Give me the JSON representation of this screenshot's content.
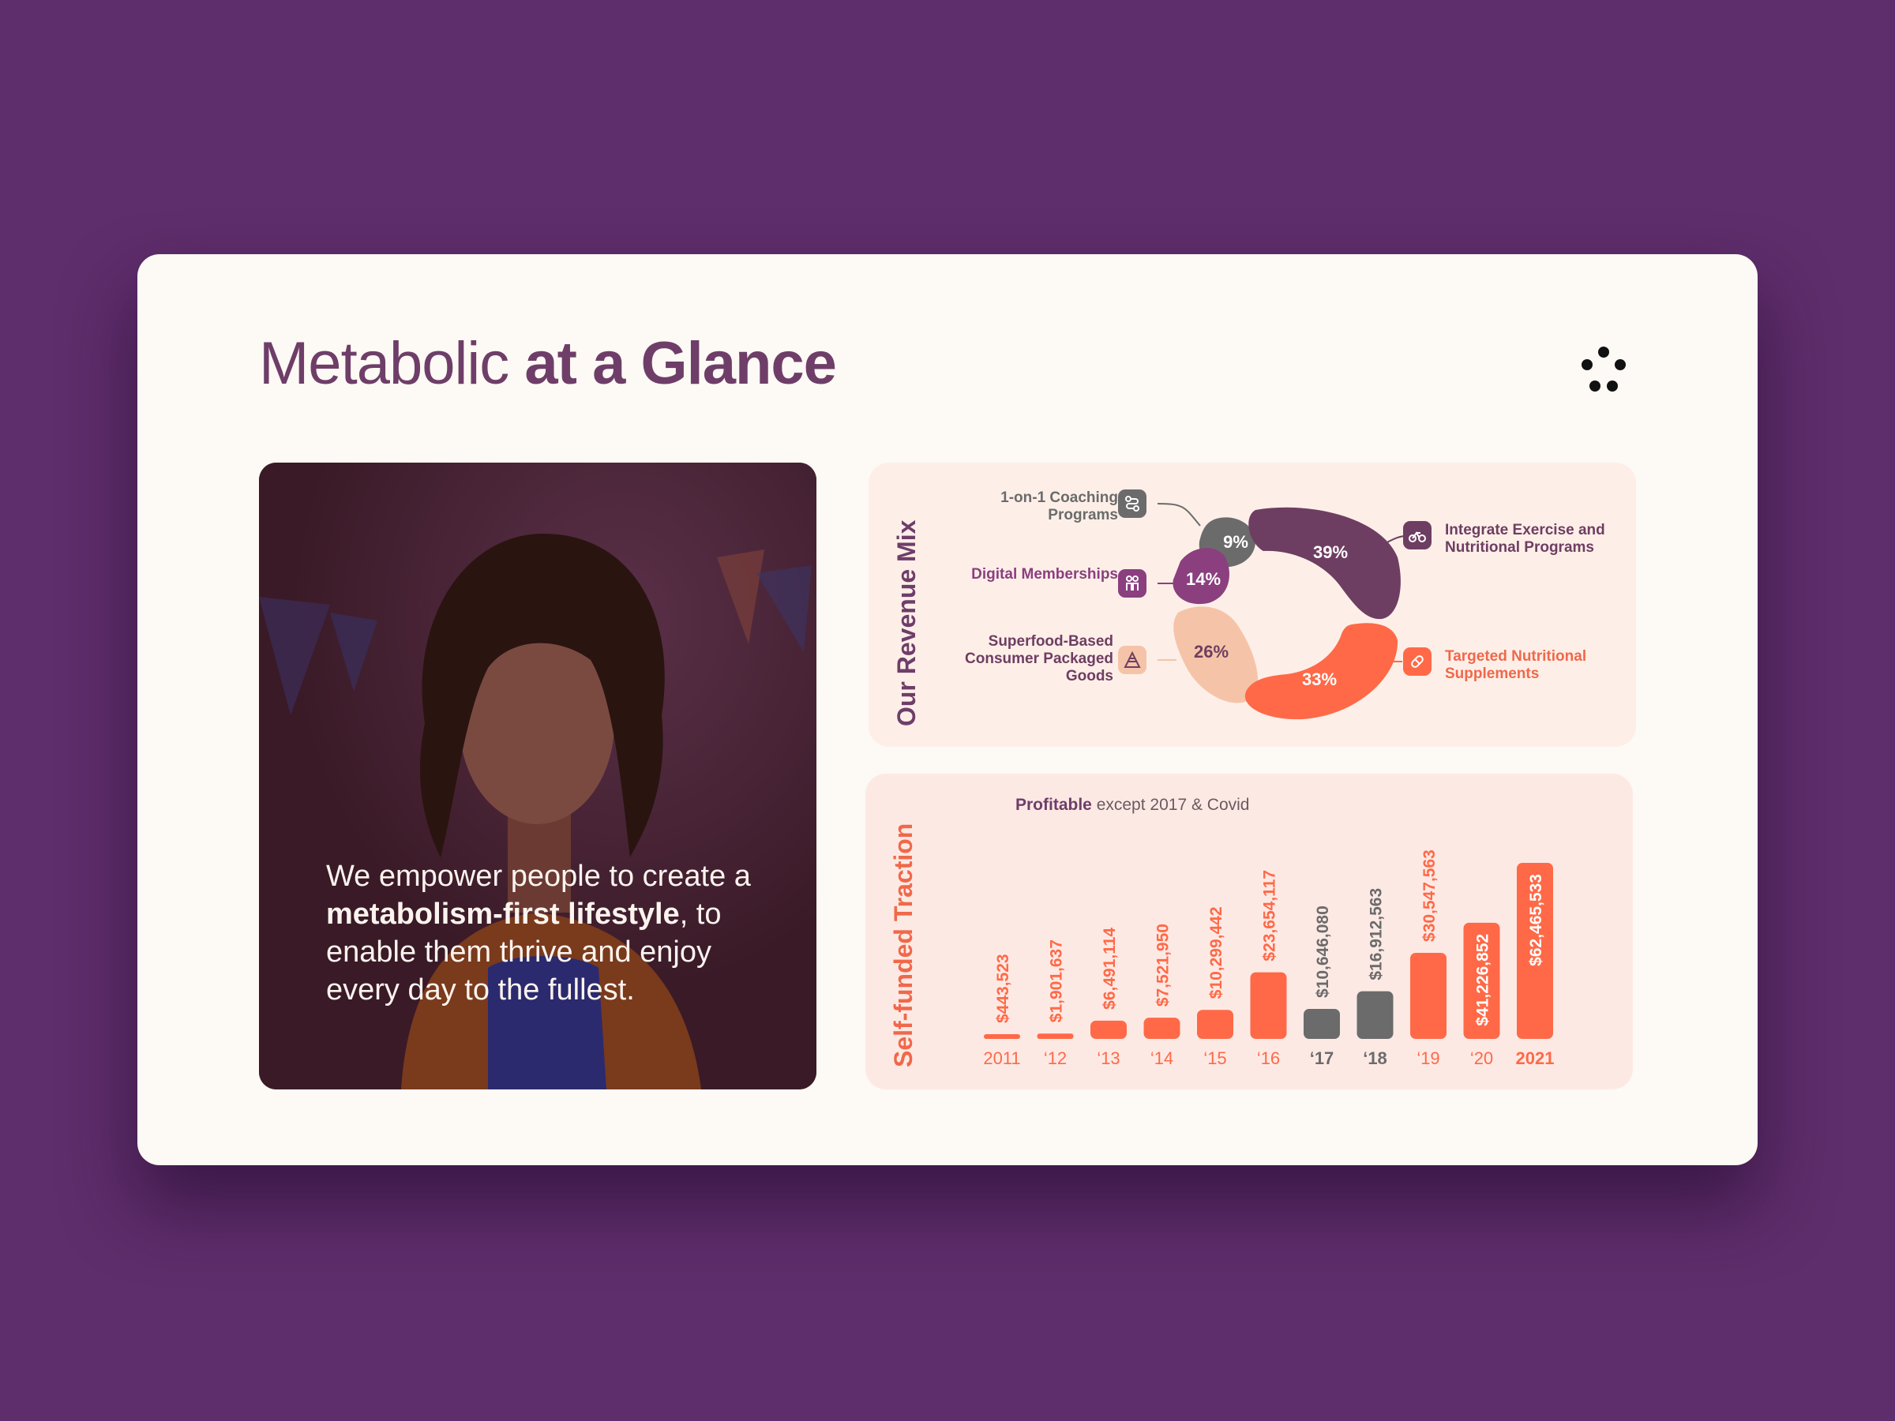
{
  "title": {
    "light": "Metabolic",
    "bold": "at a Glance"
  },
  "logo": {
    "icon": "five-dot-logo-icon"
  },
  "quote": {
    "part1": "We empower people to create a ",
    "bold": "metabolism-first lifestyle",
    "part2": ", to enable them thrive and enjoy every day to the fullest."
  },
  "revenue_mix": {
    "title": "Our Revenue Mix",
    "segments": [
      {
        "label": "1-on-1 Coaching Programs",
        "pct": "9%",
        "color": "#6b6b6b",
        "icon": "route-icon"
      },
      {
        "label": "Digital Memberships",
        "pct": "14%",
        "color": "#8b3f7f",
        "icon": "people-icon"
      },
      {
        "label": "Superfood-Based Consumer Packaged Goods",
        "pct": "26%",
        "color": "#f5c4a8",
        "icon": "food-pyramid-icon"
      },
      {
        "label": "Integrate Exercise and Nutritional Programs",
        "pct": "39%",
        "color": "#6e3e62",
        "icon": "bicycle-icon"
      },
      {
        "label": "Targeted Nutritional Supplements",
        "pct": "33%",
        "color": "#ff6947",
        "icon": "pill-icon"
      }
    ]
  },
  "traction": {
    "title": "Self-funded Traction",
    "subtitle_bold": "Profitable",
    "subtitle_rest": " except 2017 & Covid"
  },
  "chart_data": {
    "type": "bar",
    "title": "Profitable except 2017 & Covid",
    "categories": [
      "2011",
      "‘12",
      "‘13",
      "‘14",
      "‘15",
      "‘16",
      "‘17",
      "‘18",
      "‘19",
      "‘20",
      "2021"
    ],
    "values": [
      443523,
      1901637,
      6491114,
      7521950,
      10299442,
      23654117,
      10646080,
      16912563,
      30547563,
      41226852,
      62465533
    ],
    "value_labels": [
      "$443,523",
      "$1,901,637",
      "$6,491,114",
      "$7,521,950",
      "$10,299,442",
      "$23,654,117",
      "$10,646,080",
      "$16,912,563",
      "$30,547,563",
      "$41,226,852",
      "$62,465,533"
    ],
    "colors": [
      "#ff6947",
      "#ff6947",
      "#ff6947",
      "#ff6947",
      "#ff6947",
      "#ff6947",
      "#6b6b6b",
      "#6b6b6b",
      "#ff6947",
      "#ff6947",
      "#ff6947"
    ],
    "ylim": [
      0,
      65000000
    ],
    "grid": false
  }
}
